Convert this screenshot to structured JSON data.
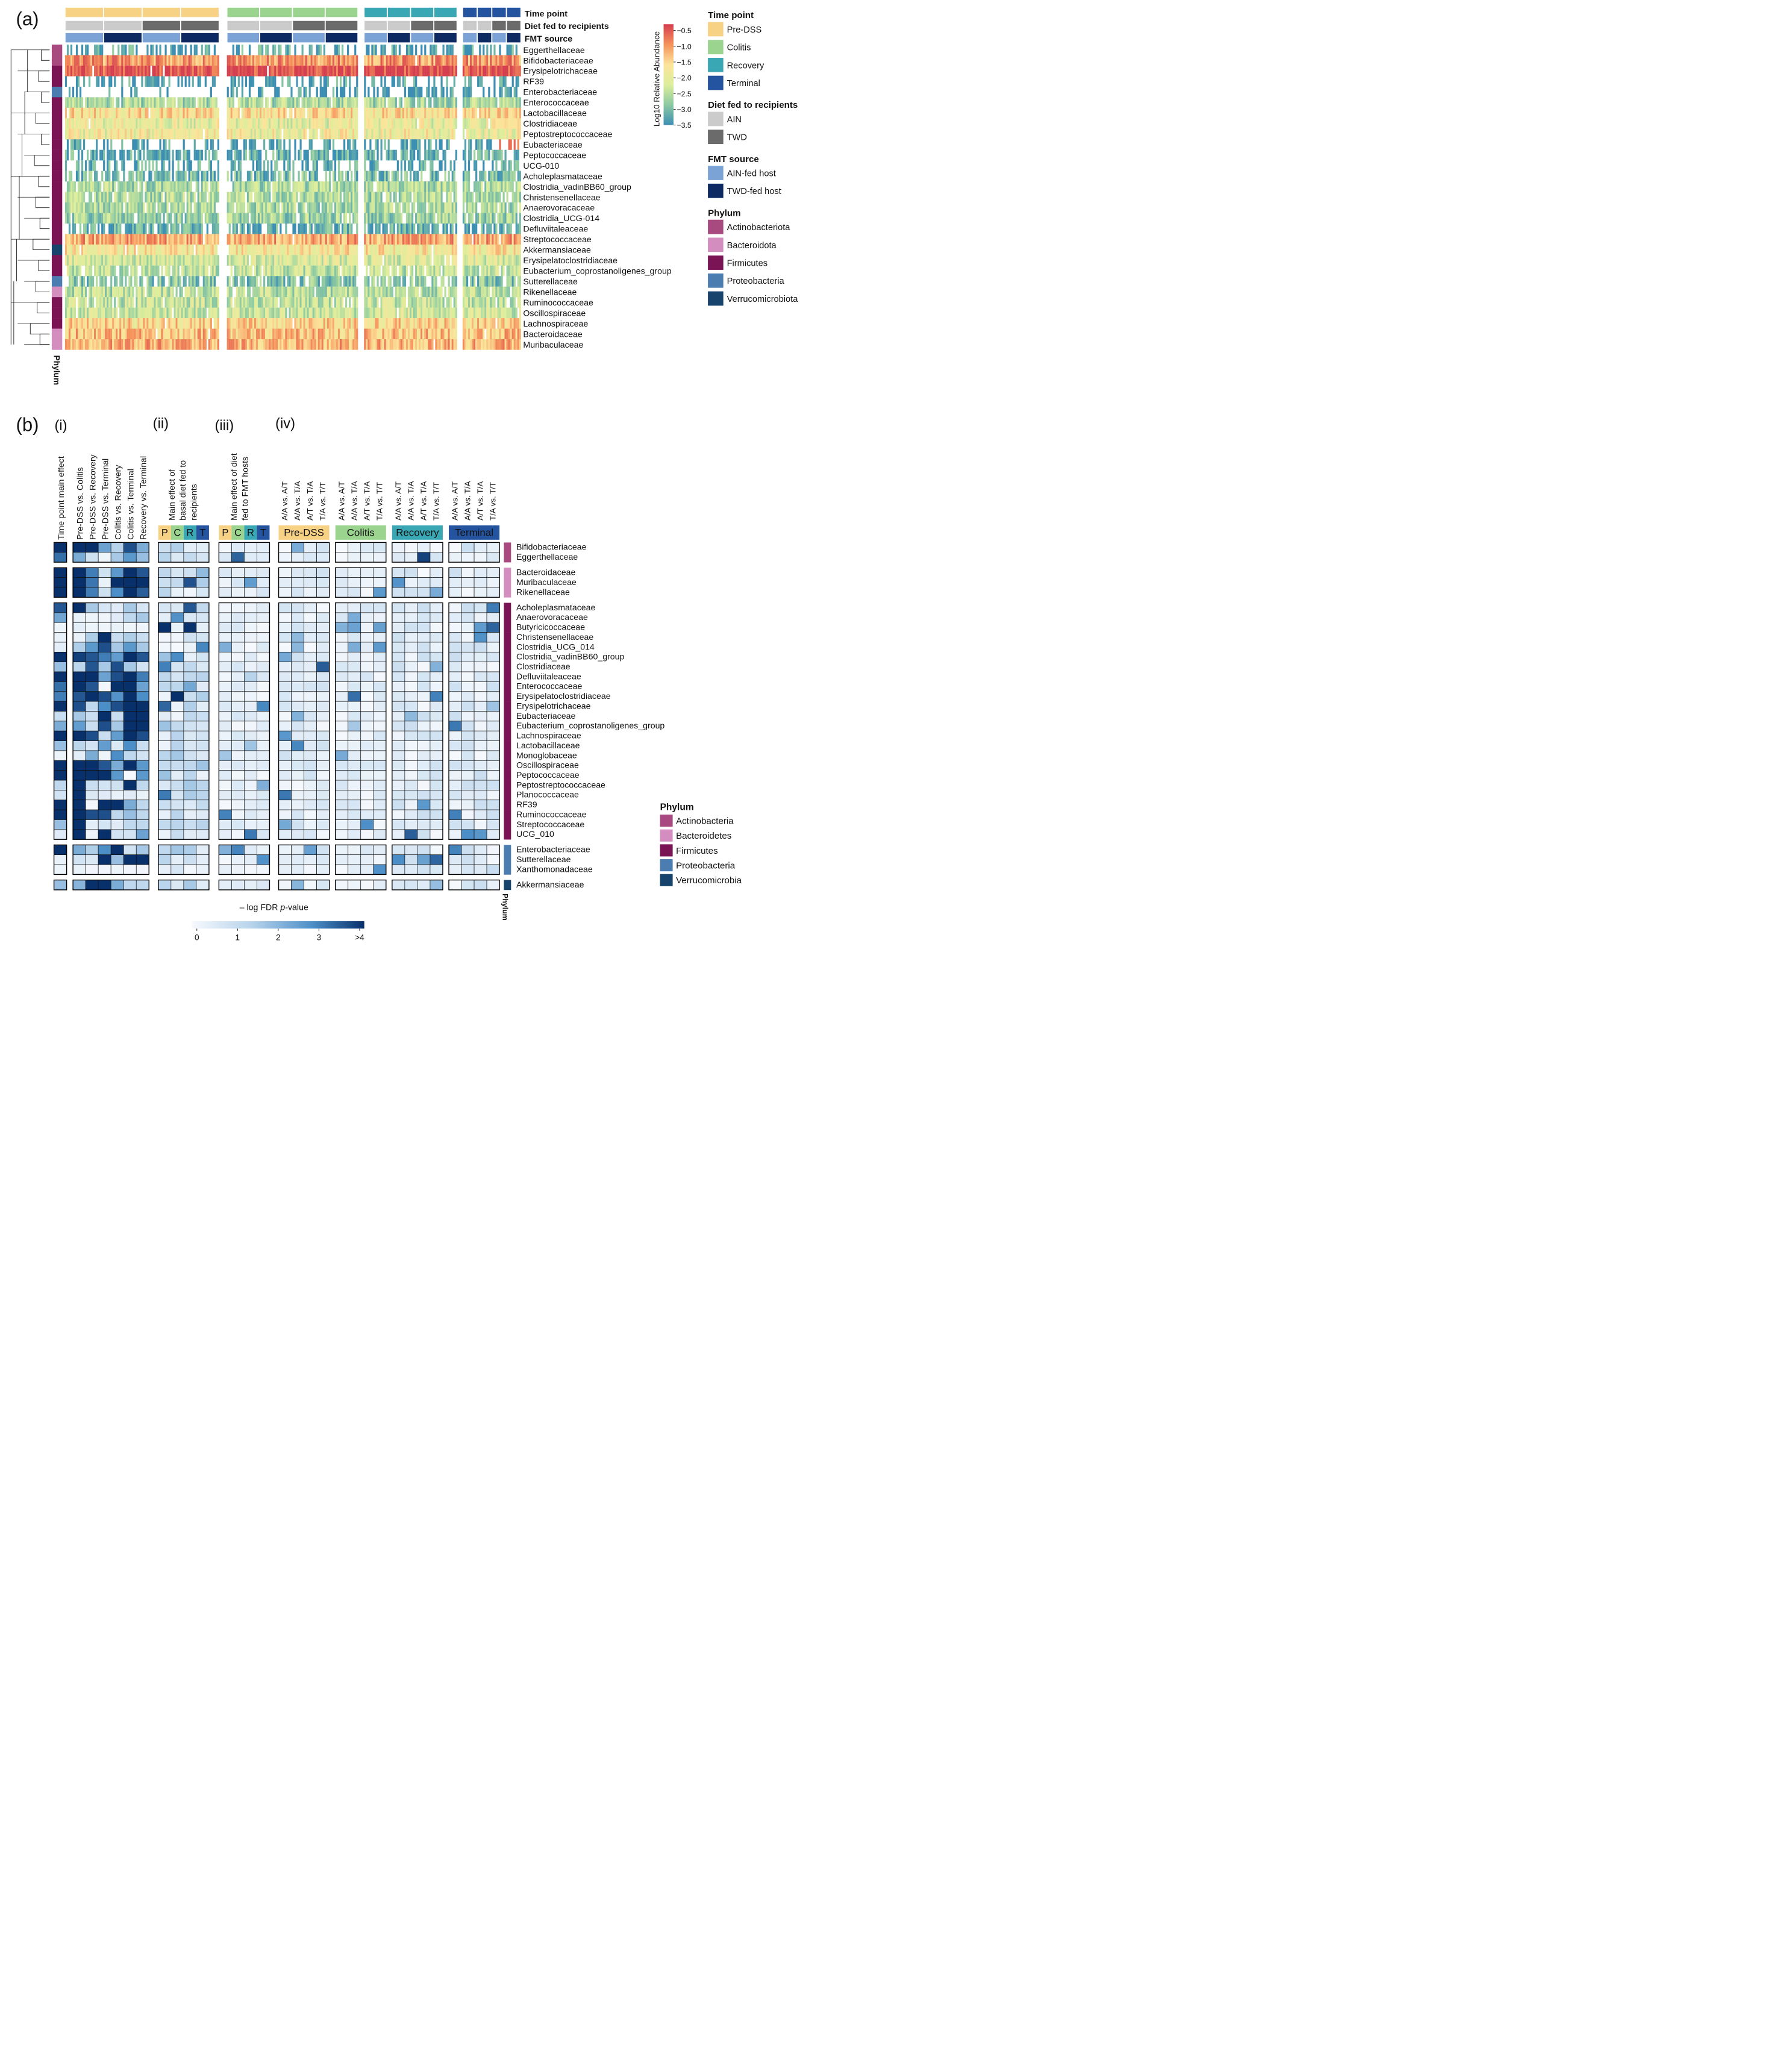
{
  "figure": {
    "panel_a_label": "(a)",
    "panel_b_label": "(b)"
  },
  "chart_data": [
    {
      "type": "heatmap",
      "panel": "(a)",
      "title": "",
      "annotation_tracks": [
        "Time point",
        "Diet fed to recipients",
        "FMT source"
      ],
      "phylum_track_label": "Phylum",
      "column_groups": [
        "Pre-DSS",
        "Colitis",
        "Recovery",
        "Terminal"
      ],
      "rows": [
        "Eggerthellaceae",
        "Bifidobacteriaceae",
        "Erysipelotrichaceae",
        "RF39",
        "Enterobacteriaceae",
        "Enterococcaceae",
        "Lactobacillaceae",
        "Clostridiaceae",
        "Peptostreptococcaceae",
        "Eubacteriaceae",
        "Peptococcaceae",
        "UCG-010",
        "Acholeplasmataceae",
        "Clostridia_vadinBB60_group",
        "Christensenellaceae",
        "Anaerovoracaceae",
        "Clostridia_UCG-014",
        "Defluviitaleaceae",
        "Streptococcaceae",
        "Akkermansiaceae",
        "Erysipelatoclostridiaceae",
        "Eubacterium_coprostanoligenes_group",
        "Sutterellaceae",
        "Rikenellaceae",
        "Ruminococcaceae",
        "Oscillospiraceae",
        "Lachnospiraceae",
        "Bacteroidaceae",
        "Muribaculaceae"
      ],
      "row_phyla": [
        "Actinobacteriota",
        "Actinobacteriota",
        "Firmicutes",
        "Firmicutes",
        "Proteobacteria",
        "Firmicutes",
        "Firmicutes",
        "Firmicutes",
        "Firmicutes",
        "Firmicutes",
        "Firmicutes",
        "Firmicutes",
        "Firmicutes",
        "Firmicutes",
        "Firmicutes",
        "Firmicutes",
        "Firmicutes",
        "Firmicutes",
        "Firmicutes",
        "Verrucomicrobiota",
        "Firmicutes",
        "Firmicutes",
        "Proteobacteria",
        "Bacteroidota",
        "Firmicutes",
        "Firmicutes",
        "Firmicutes",
        "Bacteroidota",
        "Bacteroidota"
      ],
      "row_mean_log10_abundance": [
        -3.3,
        -1.0,
        -0.4,
        -3.3,
        -3.5,
        -2.6,
        -1.6,
        -2.0,
        -1.9,
        -3.4,
        -3.2,
        -3.3,
        -3.0,
        -2.6,
        -2.6,
        -2.6,
        -2.7,
        -3.2,
        -1.1,
        -1.7,
        -2.2,
        -2.4,
        -2.9,
        -2.5,
        -2.4,
        -2.3,
        -1.5,
        -1.3,
        -1.2
      ],
      "colorbar": {
        "title": "Log10 Relative Abundance",
        "ticks": [
          "-0.5",
          "-1.0",
          "-1.5",
          "-2.0",
          "-2.5",
          "-3.0",
          "-3.5"
        ],
        "range": [
          -3.5,
          -0.3
        ]
      },
      "legend": {
        "groups": [
          {
            "title": "Time point",
            "items": [
              {
                "label": "Pre-DSS",
                "color": "#F7D184"
              },
              {
                "label": "Colitis",
                "color": "#9AD48F"
              },
              {
                "label": "Recovery",
                "color": "#3AA8B4"
              },
              {
                "label": "Terminal",
                "color": "#24539F"
              }
            ]
          },
          {
            "title": "Diet fed to recipients",
            "items": [
              {
                "label": "AIN",
                "color": "#CBCBCB"
              },
              {
                "label": "TWD",
                "color": "#6B6B6B"
              }
            ]
          },
          {
            "title": "FMT source",
            "items": [
              {
                "label": "AIN-fed host",
                "color": "#7BA3D6"
              },
              {
                "label": "TWD-fed host",
                "color": "#0E2A63"
              }
            ]
          },
          {
            "title": "Phylum",
            "items": [
              {
                "label": "Actinobacteriota",
                "color": "#A8497F"
              },
              {
                "label": "Bacteroidota",
                "color": "#D38DBE"
              },
              {
                "label": "Firmicutes",
                "color": "#7A1454"
              },
              {
                "label": "Proteobacteria",
                "color": "#4C7DB1"
              },
              {
                "label": "Verrucomicrobiota",
                "color": "#16446C"
              }
            ]
          }
        ]
      }
    },
    {
      "type": "heatmap",
      "panel": "(b)",
      "subpanel_labels": [
        "(i)",
        "(ii)",
        "(iii)",
        "(iv)"
      ],
      "sub_i_columns": [
        "Time point main effect",
        "Pre-DSS vs. Colitis",
        "Pre-DSS vs. Recovery",
        "Pre-DSS vs. Terminal",
        "Colitis vs. Recovery",
        "Colitis vs. Terminal",
        "Recovery vs. Terminal"
      ],
      "sub_ii_title": [
        "Main effect of",
        "basal diet fed to",
        "recipients"
      ],
      "sub_iii_title": [
        "Main effect of diet",
        "fed to FMT hosts"
      ],
      "pcrt_labels": [
        "P",
        "C",
        "R",
        "T"
      ],
      "sub_iv_columns": [
        "A/A vs. A/T",
        "A/A vs. T/A",
        "A/T vs. T/A",
        "T/A vs. T/T"
      ],
      "sub_iv_groups": [
        "Pre-DSS",
        "Colitis",
        "Recovery",
        "Terminal"
      ],
      "rows": [
        "Bifidobacteriaceae",
        "Eggerthellaceae",
        "Bacteroidaceae",
        "Muribaculaceae",
        "Rikenellaceae",
        "Acholeplasmataceae",
        "Anaerovoracaceae",
        "Butyricicoccaceae",
        "Christensenellaceae",
        "Clostridia_UCG_014",
        "Clostridia_vadinBB60_group",
        "Clostridiaceae",
        "Defluviitaleaceae",
        "Enterococcaceae",
        "Erysipelatoclostridiaceae",
        "Erysipelotrichaceae",
        "Eubacteriaceae",
        "Eubacterium_coprostanoligenes_group",
        "Lachnospiraceae",
        "Lactobacillaceae",
        "Monoglobaceae",
        "Oscillospiraceae",
        "Peptococcaceae",
        "Peptostreptococcaceae",
        "Planococcaceae",
        "RF39",
        "Ruminococcaceae",
        "Streptococcaceae",
        "UCG_010",
        "Enterobacteriaceae",
        "Sutterellaceae",
        "Xanthomonadaceae",
        "Akkermansiaceae"
      ],
      "row_phyla": [
        "Actinobacteria",
        "Actinobacteria",
        "Bacteroidetes",
        "Bacteroidetes",
        "Bacteroidetes",
        "Firmicutes",
        "Firmicutes",
        "Firmicutes",
        "Firmicutes",
        "Firmicutes",
        "Firmicutes",
        "Firmicutes",
        "Firmicutes",
        "Firmicutes",
        "Firmicutes",
        "Firmicutes",
        "Firmicutes",
        "Firmicutes",
        "Firmicutes",
        "Firmicutes",
        "Firmicutes",
        "Firmicutes",
        "Firmicutes",
        "Firmicutes",
        "Firmicutes",
        "Firmicutes",
        "Firmicutes",
        "Firmicutes",
        "Firmicutes",
        "Proteobacteria",
        "Proteobacteria",
        "Proteobacteria",
        "Verrucomicrobia"
      ],
      "row_groups": [
        2,
        3,
        24,
        3,
        1
      ],
      "value_scale": "-log FDR p-value (0 to >4)",
      "sub_i_values": [
        [
          4.0,
          4.0,
          4.0,
          2.4,
          1.4,
          3.6,
          2.2
        ],
        [
          3.2,
          2.2,
          0.9,
          0.2,
          1.6,
          2.6,
          1.8
        ],
        [
          4.0,
          4.0,
          3.0,
          0.9,
          2.6,
          4.0,
          3.5
        ],
        [
          4.0,
          4.0,
          3.1,
          0.3,
          4.0,
          4.0,
          4.0
        ],
        [
          4.0,
          4.0,
          3.0,
          0.9,
          2.8,
          4.0,
          3.4
        ],
        [
          3.5,
          4.0,
          1.6,
          0.7,
          0.5,
          1.6,
          0.7
        ],
        [
          2.3,
          0.3,
          0.2,
          0.2,
          0.5,
          1.2,
          1.6
        ],
        [
          0.2,
          0.4,
          0.2,
          0.2,
          0.3,
          0.2,
          0.2
        ],
        [
          0.3,
          0.3,
          1.5,
          4.0,
          1.0,
          1.5,
          1.0
        ],
        [
          0.4,
          1.5,
          2.6,
          3.6,
          1.6,
          2.6,
          1.6
        ],
        [
          4.0,
          3.8,
          3.5,
          3.0,
          2.5,
          4.0,
          3.5
        ],
        [
          1.8,
          1.3,
          3.5,
          1.6,
          3.6,
          1.6,
          0.8
        ],
        [
          4.0,
          4.0,
          4.0,
          2.4,
          3.6,
          4.0,
          3.0
        ],
        [
          3.2,
          4.0,
          3.5,
          0.1,
          4.0,
          4.0,
          2.4
        ],
        [
          3.0,
          3.5,
          4.0,
          3.6,
          2.7,
          4.0,
          2.8
        ],
        [
          4.0,
          3.6,
          1.2,
          2.8,
          3.6,
          4.0,
          4.0
        ],
        [
          1.0,
          1.6,
          1.0,
          4.0,
          1.0,
          4.0,
          4.0
        ],
        [
          2.2,
          2.5,
          1.0,
          3.6,
          1.6,
          4.0,
          4.0
        ],
        [
          4.0,
          4.0,
          3.6,
          1.0,
          2.5,
          4.0,
          3.6
        ],
        [
          1.8,
          1.3,
          0.8,
          2.5,
          0.6,
          2.8,
          1.0
        ],
        [
          0.2,
          0.4,
          2.2,
          0.2,
          2.8,
          1.2,
          0.8
        ],
        [
          4.0,
          4.0,
          4.0,
          3.5,
          2.2,
          4.0,
          2.6
        ],
        [
          4.0,
          4.0,
          4.0,
          4.0,
          2.6,
          0.0,
          2.6
        ],
        [
          1.2,
          4.0,
          1.0,
          0.8,
          0.9,
          4.0,
          1.2
        ],
        [
          0.8,
          4.0,
          0.6,
          0.5,
          0.3,
          0.5,
          0.3
        ],
        [
          4.0,
          4.0,
          0.1,
          4.0,
          4.0,
          2.2,
          1.2
        ],
        [
          4.0,
          4.0,
          3.6,
          3.6,
          1.2,
          1.8,
          1.2
        ],
        [
          1.8,
          4.0,
          0.4,
          0.8,
          0.5,
          1.2,
          1.2
        ],
        [
          0.5,
          4.0,
          0.2,
          4.0,
          0.8,
          0.8,
          2.4
        ],
        [
          4.0,
          2.2,
          1.5,
          2.8,
          4.0,
          0.8,
          1.6
        ],
        [
          0.3,
          0.8,
          0.6,
          4.0,
          1.8,
          4.0,
          4.0
        ],
        [
          0.2,
          0.3,
          0.1,
          0.1,
          0.2,
          0.1,
          0.1
        ],
        [
          1.8,
          2.0,
          4.0,
          4.0,
          2.2,
          1.2,
          1.2
        ]
      ],
      "legend": {
        "title": "Phylum",
        "items": [
          {
            "label": "Actinobacteria",
            "color": "#A8497F"
          },
          {
            "label": "Bacteroidetes",
            "color": "#D38DBE"
          },
          {
            "label": "Firmicutes",
            "color": "#7A1454"
          },
          {
            "label": "Proteobacteria",
            "color": "#4C7DB1"
          },
          {
            "label": "Verrucomicrobia",
            "color": "#16446C"
          }
        ]
      },
      "colorbar": {
        "title_prefix": "– log FDR ",
        "title_italic": "p",
        "title_suffix": "-value",
        "ticks": [
          "0",
          "1",
          "2",
          "3",
          ">4"
        ],
        "range": [
          0,
          4
        ]
      },
      "phylum_track_label": "Phylum"
    }
  ]
}
